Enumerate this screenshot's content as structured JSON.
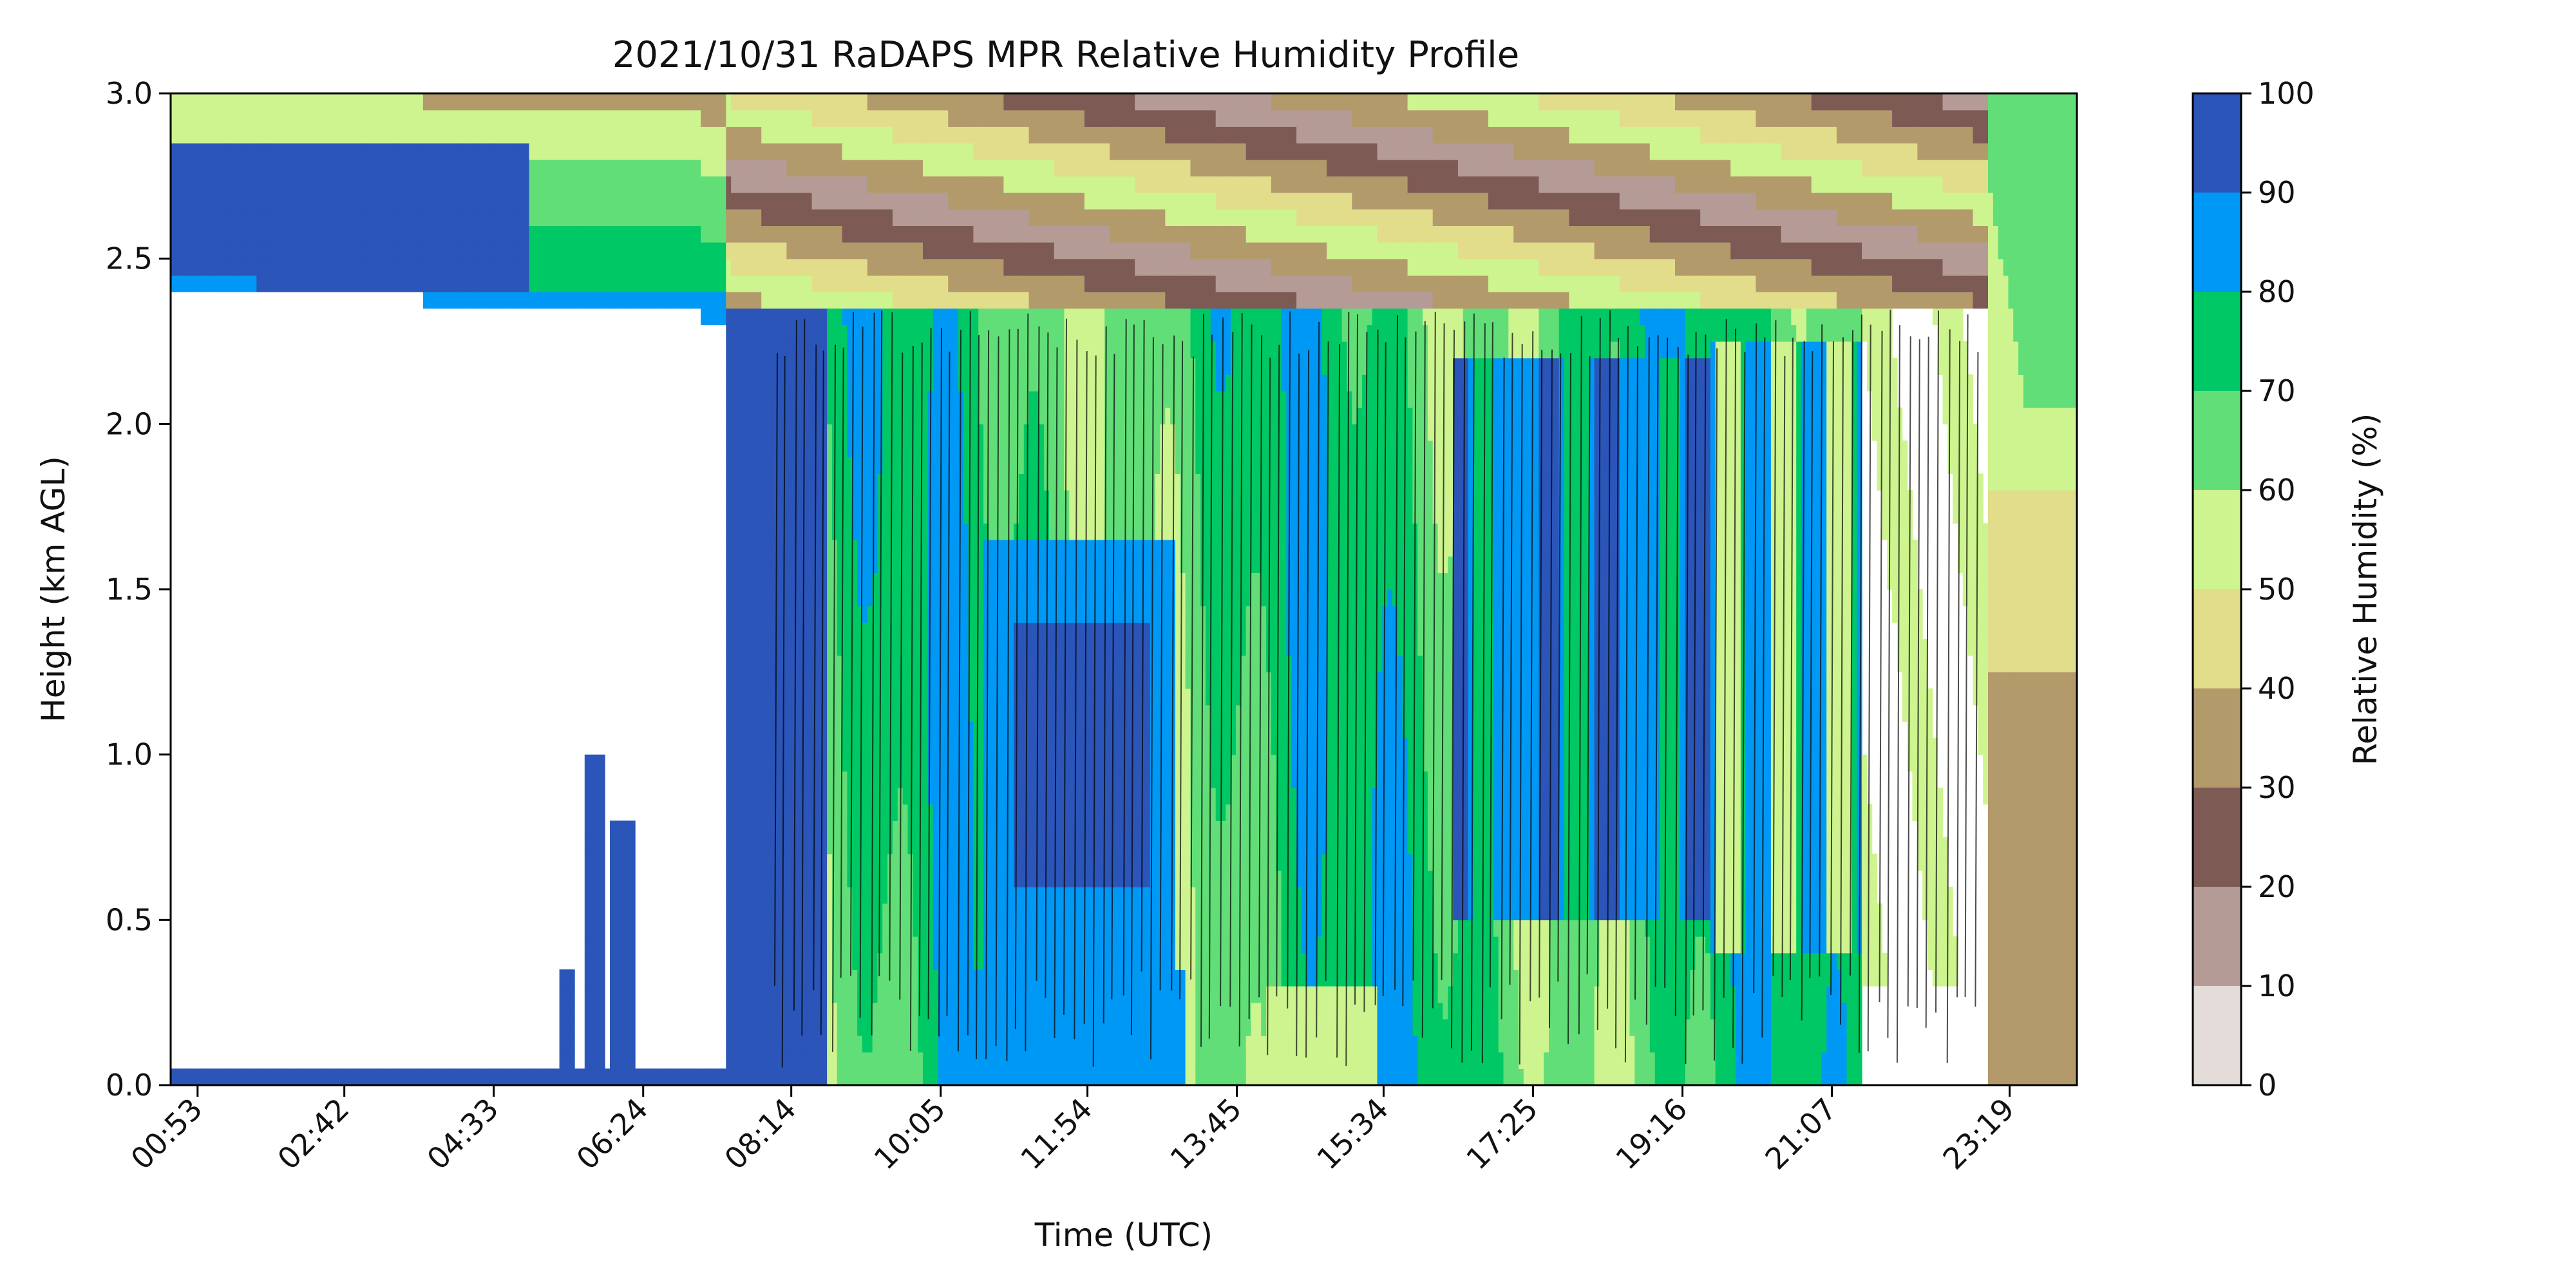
{
  "chart_data": {
    "type": "heatmap",
    "subtype": "filled-contour",
    "title": "2021/10/31 RaDAPS MPR Relative Humidity Profile",
    "xlabel": "Time (UTC)",
    "ylabel": "Height (km AGL)",
    "x_start_hours": 0.55,
    "x_end_hours": 24.15,
    "x_tick_hours": [
      0.8833,
      2.7,
      4.55,
      6.4,
      8.2333,
      10.0833,
      11.9,
      13.75,
      15.5667,
      17.4167,
      19.2667,
      21.1167,
      23.3167
    ],
    "x_tick_labels": [
      "00:53",
      "02:42",
      "04:33",
      "06:24",
      "08:14",
      "10:05",
      "11:54",
      "13:45",
      "15:34",
      "17:25",
      "19:16",
      "21:07",
      "23:19"
    ],
    "y_range": [
      0,
      3.0
    ],
    "y_ticks": [
      0.0,
      0.5,
      1.0,
      1.5,
      2.0,
      2.5,
      3.0
    ],
    "y_tick_labels": [
      "0.0",
      "0.5",
      "1.0",
      "1.5",
      "2.0",
      "2.5",
      "3.0"
    ],
    "colorbar": {
      "label": "Relative Humidity (%)",
      "levels": [
        0,
        10,
        20,
        30,
        40,
        50,
        60,
        70,
        80,
        90,
        100
      ],
      "tick_labels": [
        "0",
        "10",
        "20",
        "30",
        "40",
        "50",
        "60",
        "70",
        "80",
        "90",
        "100"
      ],
      "colors": [
        "#e4dcd9",
        "#b59b96",
        "#7e5a55",
        "#b39a6b",
        "#e2dd8a",
        "#cdf48f",
        "#62de78",
        "#00c864",
        "#0098f5",
        "#2b55b8"
      ]
    },
    "regions": [
      {
        "name": "early-boundary-saturated",
        "time": [
          0.55,
          7.4
        ],
        "height": [
          0.0,
          0.03
        ],
        "rh_band": "90-100"
      },
      {
        "name": "early-upper-saturated",
        "time": [
          0.55,
          5.0
        ],
        "height": [
          2.4,
          2.9
        ],
        "rh_band": "90-100"
      },
      {
        "name": "early-spikes",
        "time": [
          5.3,
          6.2
        ],
        "height": [
          0.0,
          1.0
        ],
        "rh_band": "90-100"
      },
      {
        "name": "morning-saturated-column",
        "time": [
          7.4,
          8.6
        ],
        "height": [
          0.0,
          2.3
        ],
        "rh_band": "90-100"
      },
      {
        "name": "midday-core",
        "time": [
          11.0,
          12.7
        ],
        "height": [
          0.6,
          1.4
        ],
        "rh_band": "90-100"
      },
      {
        "name": "afternoon-core",
        "time": [
          16.4,
          19.6
        ],
        "height": [
          0.5,
          2.2
        ],
        "rh_band": "90-100"
      },
      {
        "name": "late-dry-column",
        "time": [
          23.1,
          24.15
        ],
        "height": [
          0.0,
          1.2
        ],
        "rh_band": "30-40"
      }
    ]
  }
}
